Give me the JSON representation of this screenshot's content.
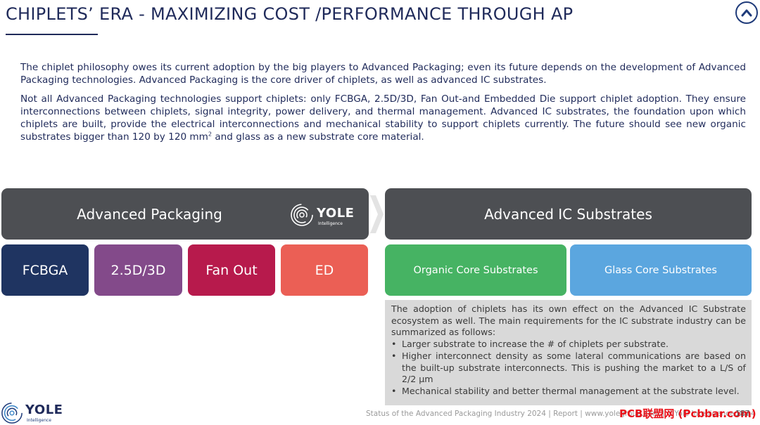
{
  "header": {
    "title": "CHIPLETS’ ERA - MAXIMIZING COST /PERFORMANCE THROUGH AP",
    "nav_icon": "chevron-up-circle-icon"
  },
  "body": {
    "para1": "The chiplet philosophy owes its current adoption by the big players to Advanced Packaging; even its future depends on the development of Advanced Packaging technologies. Advanced Packaging is the core driver of chiplets, as well as advanced IC substrates.",
    "para2_part1": "Not all Advanced Packaging technologies support chiplets: only FCBGA, 2.5D/3D, Fan Out-and Embedded Die support chiplet adoption. They ensure interconnections between chiplets, signal integrity, power delivery, and thermal management. Advanced IC substrates, the foundation upon which chiplets are built, provide the electrical interconnections and mechanical stability to support chiplets currently. The future should see new organic substrates bigger than 120 by 120 mm",
    "para2_sup": "2",
    "para2_part2": " and glass as a new substrate core material."
  },
  "diagram": {
    "left_header": "Advanced Packaging",
    "right_header": "Advanced IC Substrates",
    "logo_text": "YOLE",
    "logo_subtext": "Intelligence",
    "left_tiles": [
      "FCBGA",
      "2.5D/3D",
      "Fan Out",
      "ED"
    ],
    "right_tiles": [
      "Organic Core Substrates",
      "Glass Core Substrates"
    ],
    "colors": {
      "dark_bar": "#4d4f53",
      "fcbga": "#1f3461",
      "two_five_d": "#834a8a",
      "fan_out": "#b71a4c",
      "ed": "#eb5f55",
      "organic": "#46b363",
      "glass": "#5ba6df"
    }
  },
  "info_box": {
    "intro": "The adoption of chiplets has its own effect on the Advanced IC Substrate ecosystem as well. The main requirements for the IC substrate industry can be summarized as follows:",
    "bullets": [
      "Larger substrate to increase the # of chiplets per substrate.",
      "Higher interconnect density as some lateral communications are based on the built-up substrate interconnects. This is pushing the market to a L/S of 2/2 µm",
      "Mechanical stability and better thermal management at the substrate level."
    ]
  },
  "footer": {
    "logo_text": "YOLE",
    "logo_subtext": "Intelligence",
    "source": "Status of the Advanced Packaging Industry 2024 | Report | www.yolegroup.com | ©Yole Intelligence 2024",
    "watermark": "PCB联盟网 (Pcbbar.com)",
    "page_number": "187"
  }
}
